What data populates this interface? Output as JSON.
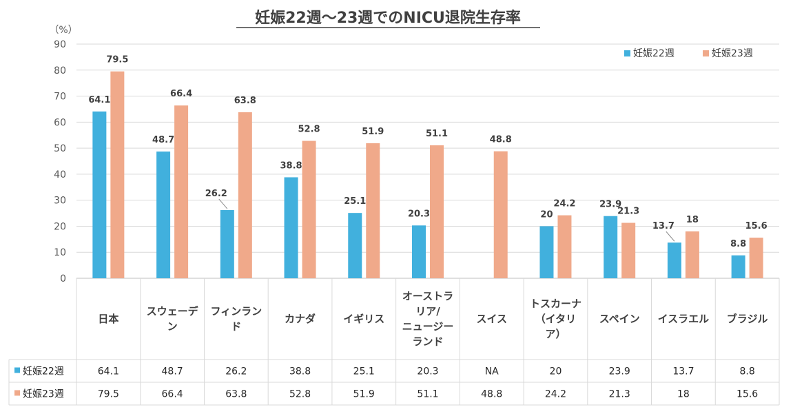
{
  "chart_data": {
    "type": "bar",
    "title": "妊娠22週～23週でのNICU退院生存率",
    "unit": "（%）",
    "ylim": [
      0,
      90
    ],
    "yticks": [
      "0",
      "10",
      "20",
      "30",
      "40",
      "50",
      "60",
      "70",
      "80",
      "90"
    ],
    "categories": [
      [
        "日本"
      ],
      [
        "スウェーデ",
        "ン"
      ],
      [
        "フィンラン",
        "ド"
      ],
      [
        "カナダ"
      ],
      [
        "イギリス"
      ],
      [
        "オーストラ",
        "リア/",
        "ニュージー",
        "ランド"
      ],
      [
        "スイス"
      ],
      [
        "トスカーナ",
        "（イタリ",
        "ア）"
      ],
      [
        "スペイン"
      ],
      [
        "イスラエル"
      ],
      [
        "ブラジル"
      ]
    ],
    "series": [
      {
        "name": "妊娠22週",
        "color": "#41b0dd",
        "values": [
          64.1,
          48.7,
          26.2,
          38.8,
          25.1,
          20.3,
          null,
          20,
          23.9,
          13.7,
          8.8
        ],
        "labels": [
          "64.1",
          "48.7",
          "26.2",
          "38.8",
          "25.1",
          "20.3",
          "",
          "20",
          "23.9",
          "13.7",
          "8.8"
        ],
        "table": [
          "64.1",
          "48.7",
          "26.2",
          "38.8",
          "25.1",
          "20.3",
          "NA",
          "20",
          "23.9",
          "13.7",
          "8.8"
        ]
      },
      {
        "name": "妊娠23週",
        "color": "#f0a98a",
        "values": [
          79.5,
          66.4,
          63.8,
          52.8,
          51.9,
          51.1,
          48.8,
          24.2,
          21.3,
          18,
          15.6
        ],
        "labels": [
          "79.5",
          "66.4",
          "63.8",
          "52.8",
          "51.9",
          "51.1",
          "48.8",
          "24.2",
          "21.3",
          "18",
          "15.6"
        ],
        "table": [
          "79.5",
          "66.4",
          "63.8",
          "52.8",
          "51.9",
          "51.1",
          "48.8",
          "24.2",
          "21.3",
          "18",
          "15.6"
        ]
      }
    ],
    "legend": "top-right",
    "grid": true
  }
}
